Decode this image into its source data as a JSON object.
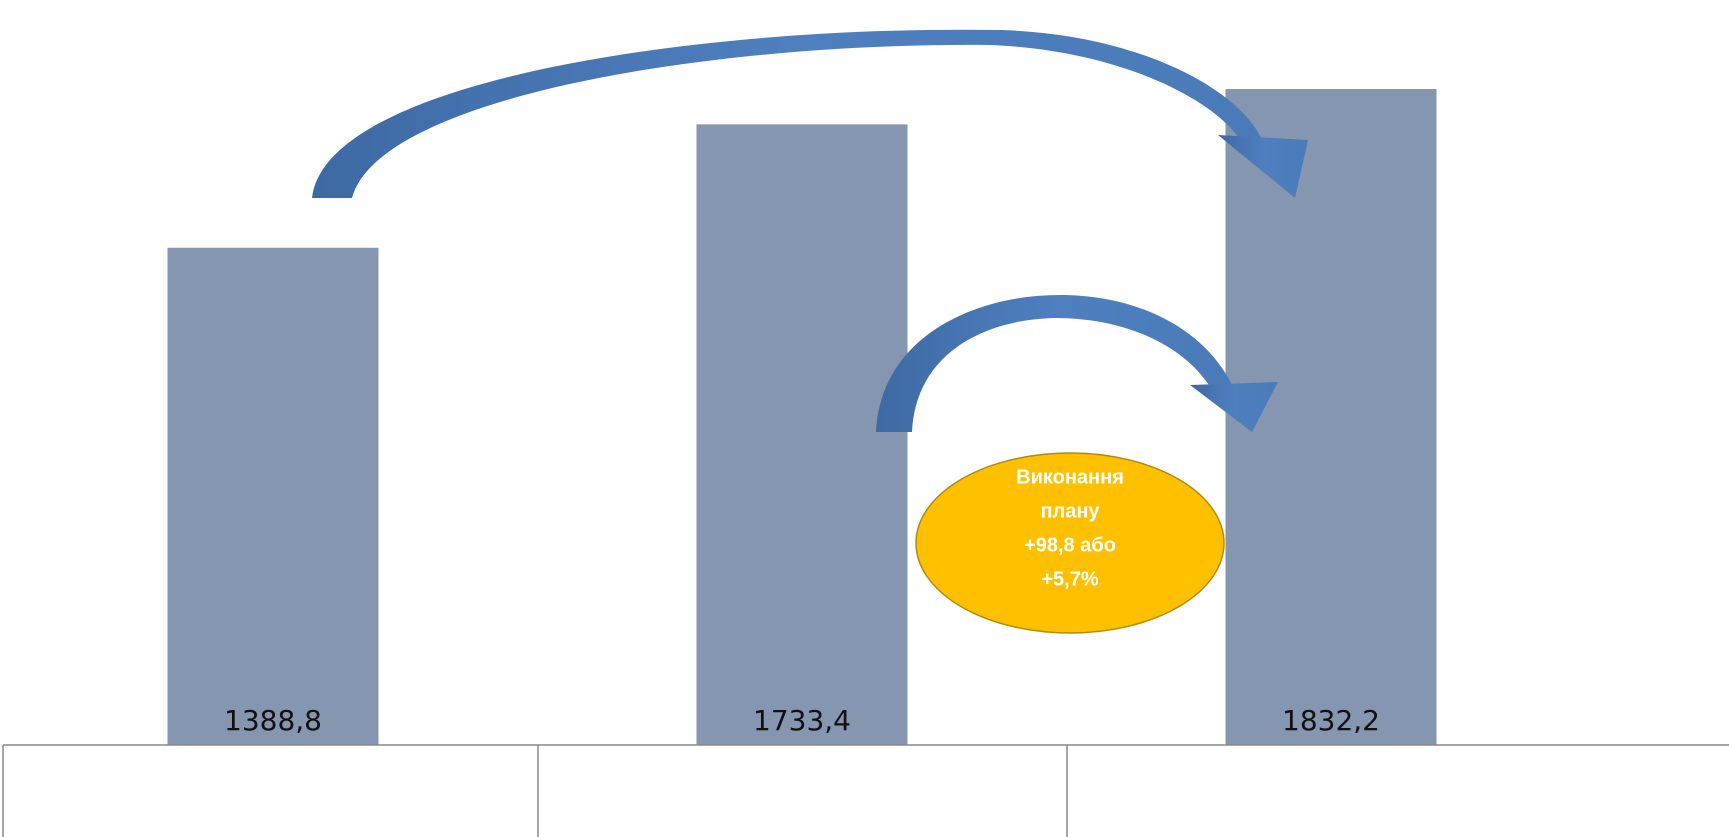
{
  "chart_data": {
    "type": "bar",
    "values": [
      1388.8,
      1733.4,
      1832.2
    ],
    "value_labels": [
      "1388,8",
      "1733,4",
      "1832,2"
    ],
    "color": "#8496b0",
    "annotation": [
      "Виконання",
      "плану",
      "+98,8 або",
      "+5,7%"
    ]
  }
}
